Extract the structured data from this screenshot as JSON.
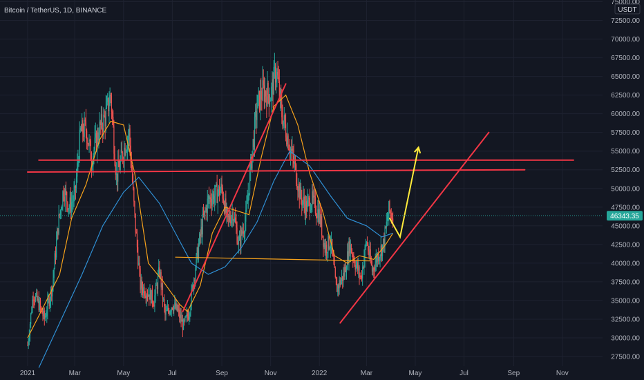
{
  "header": {
    "symbol": "Bitcoin / TetherUS, 1D, BINANCE"
  },
  "price_axis": {
    "unit": "USDT",
    "top_label": "75000.00"
  },
  "colors": {
    "background": "#131722",
    "grid": "#1e2230",
    "up_candle": "#26a69a",
    "down_candle": "#ef5350",
    "ma_fast": "#f7a21b",
    "ma_slow": "#2f8fd4",
    "trendline": "#f23645",
    "projection": "#ffeb3b",
    "support": "#f7a21b",
    "last_price_bg": "#26a69a"
  },
  "chart_data": {
    "type": "candlestick",
    "x_tick_labels": [
      "2021",
      "Mar",
      "May",
      "Jul",
      "Sep",
      "Nov",
      "2022",
      "Mar",
      "May",
      "Jul",
      "Sep",
      "Nov"
    ],
    "y_tick_values": [
      27500,
      30000,
      32500,
      35000,
      37500,
      40000,
      42500,
      45000,
      47500,
      50000,
      52500,
      55000,
      57500,
      60000,
      62500,
      65000,
      67500,
      70000,
      72500,
      75000
    ],
    "y_tick_labels": [
      "27500.00",
      "30000.00",
      "32500.00",
      "35000.00",
      "37500.00",
      "40000.00",
      "42500.00",
      "45000.00",
      "47500.00",
      "50000.00",
      "52500.00",
      "55000.00",
      "57500.00",
      "60000.00",
      "62500.00",
      "65000.00",
      "67500.00",
      "70000.00",
      "72500.00",
      "75000.00"
    ],
    "ylim": [
      26000,
      76000
    ],
    "last_price": 46343.35,
    "last_price_label": "46343.35",
    "series": [
      {
        "name": "close",
        "x": [
          "2021-01-01",
          "2021-01-08",
          "2021-01-15",
          "2021-01-22",
          "2021-02-01",
          "2021-02-08",
          "2021-02-15",
          "2021-02-22",
          "2021-03-01",
          "2021-03-08",
          "2021-03-15",
          "2021-03-22",
          "2021-04-01",
          "2021-04-08",
          "2021-04-15",
          "2021-04-22",
          "2021-05-01",
          "2021-05-08",
          "2021-05-15",
          "2021-05-22",
          "2021-06-01",
          "2021-06-08",
          "2021-06-15",
          "2021-06-22",
          "2021-07-01",
          "2021-07-08",
          "2021-07-15",
          "2021-07-22",
          "2021-08-01",
          "2021-08-08",
          "2021-08-15",
          "2021-08-22",
          "2021-09-01",
          "2021-09-08",
          "2021-09-15",
          "2021-09-22",
          "2021-10-01",
          "2021-10-08",
          "2021-10-15",
          "2021-10-22",
          "2021-11-01",
          "2021-11-08",
          "2021-11-15",
          "2021-11-22",
          "2021-12-01",
          "2021-12-08",
          "2021-12-15",
          "2021-12-22",
          "2022-01-01",
          "2022-01-08",
          "2022-01-15",
          "2022-01-22",
          "2022-02-01",
          "2022-02-08",
          "2022-02-15",
          "2022-02-22",
          "2022-03-01",
          "2022-03-08",
          "2022-03-15",
          "2022-03-22",
          "2022-03-29",
          "2022-04-03"
        ],
        "values": [
          29000,
          36000,
          34500,
          32500,
          37000,
          45000,
          50000,
          47500,
          49000,
          57500,
          58000,
          54000,
          58000,
          59500,
          62500,
          51500,
          55000,
          57500,
          46000,
          37000,
          36000,
          35000,
          39000,
          33000,
          34500,
          33500,
          31500,
          33500,
          41000,
          45500,
          48500,
          49000,
          50000,
          45500,
          47000,
          42500,
          46000,
          54000,
          61000,
          63000,
          62500,
          66000,
          60000,
          57000,
          53000,
          49000,
          47500,
          48500,
          46500,
          42000,
          43000,
          36500,
          38500,
          42500,
          40000,
          38000,
          43000,
          39000,
          41000,
          42500,
          47000,
          46343
        ]
      }
    ],
    "moving_averages": [
      {
        "name": "ma_fast",
        "x": [
          "2021-01-01",
          "2021-01-20",
          "2021-02-10",
          "2021-02-25",
          "2021-03-15",
          "2021-04-01",
          "2021-04-15",
          "2021-05-01",
          "2021-05-15",
          "2021-06-01",
          "2021-06-20",
          "2021-07-10",
          "2021-07-20",
          "2021-08-05",
          "2021-08-20",
          "2021-09-05",
          "2021-09-20",
          "2021-10-05",
          "2021-10-20",
          "2021-11-05",
          "2021-11-20",
          "2021-12-05",
          "2021-12-20",
          "2022-01-05",
          "2022-01-20",
          "2022-02-05",
          "2022-02-20",
          "2022-03-10",
          "2022-03-25",
          "2022-04-03"
        ],
        "values": [
          30000,
          34000,
          38500,
          46000,
          50500,
          56500,
          59000,
          58500,
          52000,
          40000,
          37500,
          34500,
          33500,
          37000,
          44000,
          47500,
          47000,
          46500,
          54000,
          61000,
          62500,
          58500,
          52000,
          47000,
          41000,
          40000,
          41000,
          40500,
          42500,
          44000
        ]
      },
      {
        "name": "ma_slow",
        "x": [
          "2021-01-15",
          "2021-02-10",
          "2021-03-10",
          "2021-04-05",
          "2021-05-01",
          "2021-05-20",
          "2021-06-15",
          "2021-07-05",
          "2021-07-25",
          "2021-08-15",
          "2021-09-05",
          "2021-09-25",
          "2021-10-15",
          "2021-11-05",
          "2021-11-25",
          "2021-12-20",
          "2022-01-15",
          "2022-02-05",
          "2022-03-01",
          "2022-03-20",
          "2022-04-03"
        ],
        "values": [
          26000,
          32000,
          38500,
          45000,
          49500,
          51500,
          48000,
          44000,
          40000,
          38500,
          39500,
          42000,
          45500,
          51000,
          55000,
          53000,
          49000,
          46000,
          45000,
          43500,
          44000
        ]
      }
    ],
    "annotations": [
      {
        "type": "line",
        "name": "trend-up-2021",
        "x": [
          "2021-07-14",
          "2021-11-20"
        ],
        "y": [
          33500,
          64000
        ]
      },
      {
        "type": "line",
        "name": "resistance-upper",
        "x": [
          "2021-01-15",
          "2022-11-15"
        ],
        "y": [
          53800,
          53800
        ]
      },
      {
        "type": "line",
        "name": "resistance-lower",
        "x": [
          "2021-01-01",
          "2022-09-15"
        ],
        "y": [
          52200,
          52500
        ]
      },
      {
        "type": "line",
        "name": "support-july",
        "x": [
          "2021-07-05",
          "2022-03-05"
        ],
        "y": [
          40800,
          40300
        ]
      },
      {
        "type": "line",
        "name": "trend-up-2022",
        "x": [
          "2022-01-27",
          "2022-08-01"
        ],
        "y": [
          32000,
          57500
        ]
      },
      {
        "type": "polyline",
        "name": "projection-arrow",
        "x": [
          "2022-03-30",
          "2022-04-12",
          "2022-05-05"
        ],
        "y": [
          46000,
          43500,
          55500
        ]
      }
    ]
  }
}
